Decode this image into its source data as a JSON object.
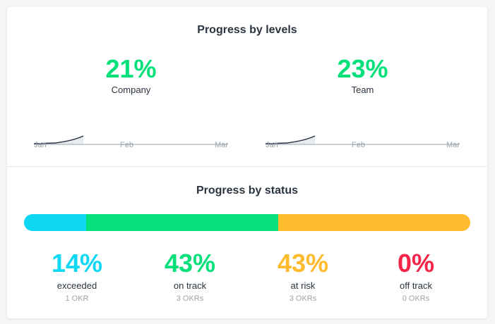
{
  "levels": {
    "title": "Progress by levels",
    "axis_ticks": [
      "Jan",
      "Feb",
      "Mar"
    ],
    "items": [
      {
        "percent": "21%",
        "label": "Company"
      },
      {
        "percent": "23%",
        "label": "Team"
      }
    ]
  },
  "status": {
    "title": "Progress by status",
    "items": [
      {
        "percent": "14%",
        "label": "exceeded",
        "count": "1 OKR",
        "value": 14,
        "color": "#0fd8f5"
      },
      {
        "percent": "43%",
        "label": "on track",
        "count": "3 OKRs",
        "value": 43,
        "color": "#05e07a"
      },
      {
        "percent": "43%",
        "label": "at risk",
        "count": "3 OKRs",
        "value": 43,
        "color": "#ffbb2e"
      },
      {
        "percent": "0%",
        "label": "off track",
        "count": "0 OKRs",
        "value": 0,
        "color": "#f5254a"
      }
    ]
  },
  "colors": {
    "level_accent": "#05e07a",
    "text": "#2a3440",
    "muted": "#9aa3ab"
  }
}
